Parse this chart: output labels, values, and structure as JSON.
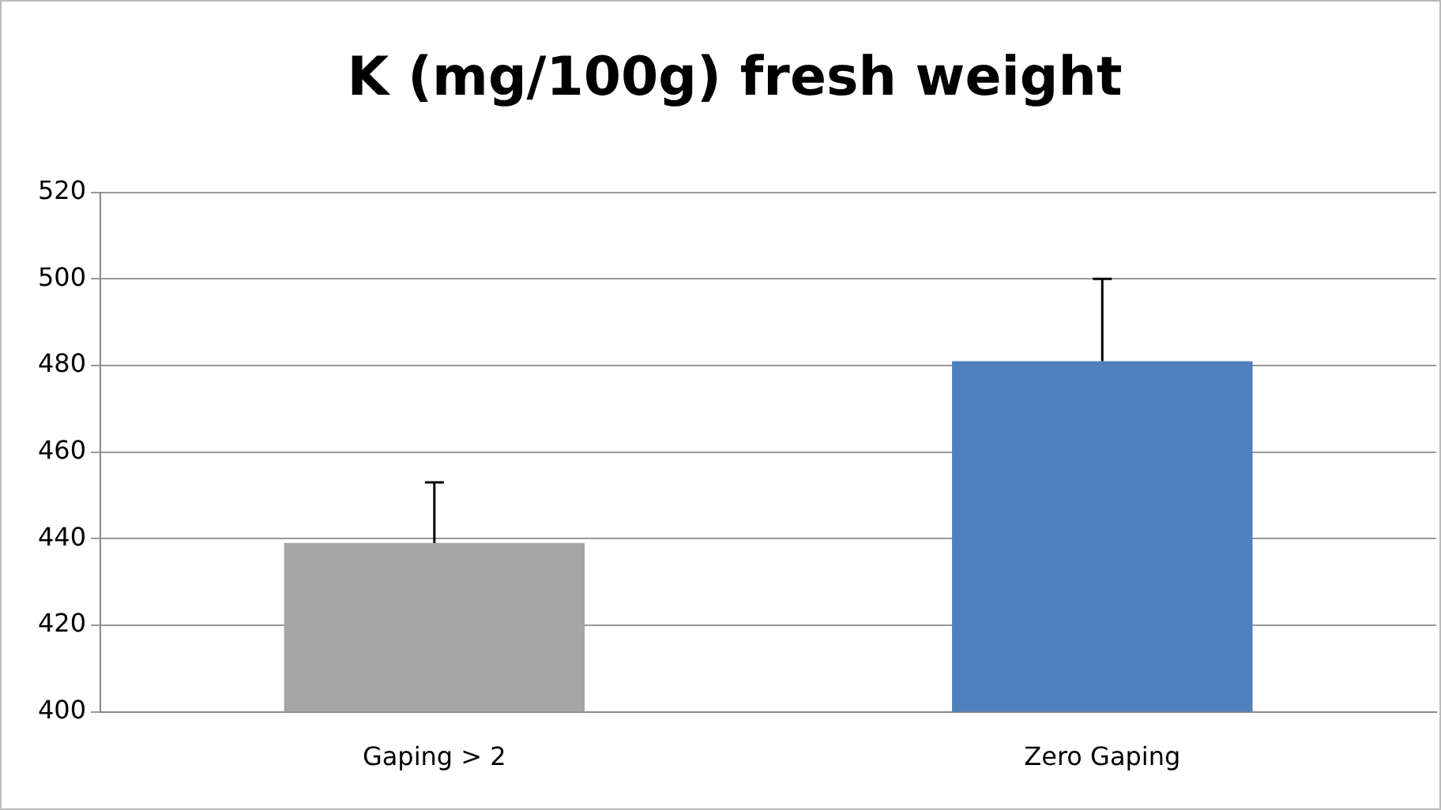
{
  "chart_data": {
    "type": "bar",
    "title": "K (mg/100g) fresh weight",
    "categories": [
      "Gaping > 2",
      "Zero Gaping"
    ],
    "values": [
      439,
      481
    ],
    "colors": [
      "#a5a5a5",
      "#4f81bd"
    ],
    "errors": [
      [
        439,
        453
      ],
      [
        481,
        500
      ]
    ],
    "ylim": [
      400,
      520
    ],
    "yticks": [
      400,
      420,
      440,
      460,
      480,
      500,
      520
    ],
    "grid": "y",
    "legend": false
  }
}
